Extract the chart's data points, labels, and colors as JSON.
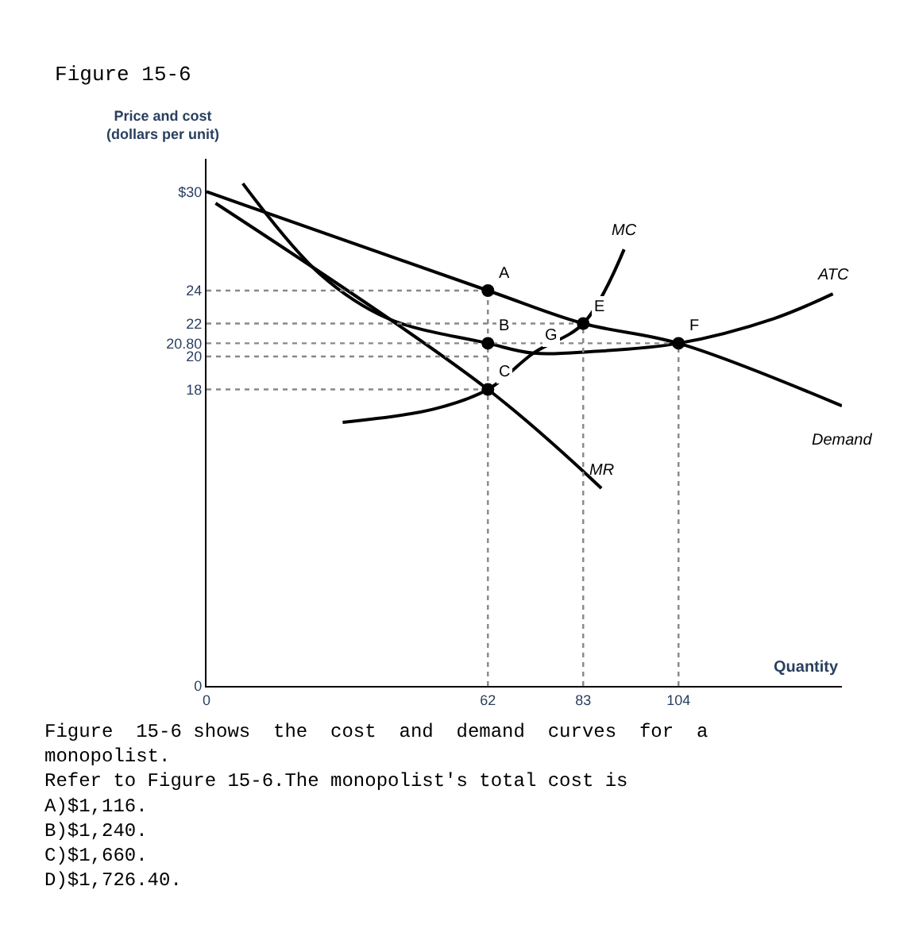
{
  "chart_data": {
    "type": "line",
    "title": "Figure 15-6",
    "ylabel": "Price and cost\n(dollars per unit)",
    "xlabel": "Quantity",
    "xlim": [
      0,
      140
    ],
    "ylim": [
      0,
      32
    ],
    "xticks": [
      0,
      62,
      83,
      104
    ],
    "yticks": [
      0,
      18,
      20,
      {
        "value": 20.8,
        "label": "20.80"
      },
      22,
      24,
      {
        "value": 30,
        "label": "$30"
      }
    ],
    "legend": false,
    "line_style": "solid",
    "marker": "none",
    "series": [
      {
        "name": "Demand",
        "color": "#000000",
        "x": [
          0,
          62,
          83,
          104,
          140
        ],
        "values": [
          30,
          24,
          22,
          20.8,
          17
        ]
      },
      {
        "name": "MR",
        "color": "#000000",
        "x": [
          2,
          62,
          87
        ],
        "values": [
          29.3,
          18,
          12
        ]
      },
      {
        "name": "ATC",
        "color": "#000000",
        "x": [
          8,
          25,
          40,
          62,
          72,
          85,
          104,
          125,
          138
        ],
        "values": [
          30.5,
          25,
          22.3,
          20.8,
          20.2,
          20.3,
          20.8,
          22.3,
          23.8
        ]
      },
      {
        "name": "MC",
        "color": "#000000",
        "x": [
          30,
          50,
          62,
          72,
          83,
          92
        ],
        "values": [
          16,
          16.8,
          18,
          20.2,
          22,
          26.5
        ]
      },
      {
        "color": "#888888",
        "line_style": "dotted",
        "x": [
          0,
          62
        ],
        "values": [
          24,
          24
        ]
      },
      {
        "color": "#888888",
        "line_style": "dotted",
        "x": [
          0,
          83
        ],
        "values": [
          22,
          22
        ]
      },
      {
        "color": "#888888",
        "line_style": "dotted",
        "x": [
          0,
          104
        ],
        "values": [
          20.8,
          20.8
        ]
      },
      {
        "color": "#888888",
        "line_style": "dotted",
        "x": [
          0,
          62
        ],
        "values": [
          20,
          20
        ]
      },
      {
        "color": "#888888",
        "line_style": "dotted",
        "x": [
          0,
          62
        ],
        "values": [
          18,
          18
        ]
      },
      {
        "color": "#888888",
        "line_style": "dotted",
        "x": [
          62,
          62
        ],
        "values": [
          0,
          24
        ]
      },
      {
        "color": "#888888",
        "line_style": "dotted",
        "x": [
          83,
          83
        ],
        "values": [
          0,
          22
        ]
      },
      {
        "color": "#888888",
        "line_style": "dotted",
        "x": [
          104,
          104
        ],
        "values": [
          0,
          20.8
        ]
      },
      {
        "type": "scatter",
        "marker": "circle",
        "color": "#000000",
        "x": [
          62,
          62,
          62,
          83,
          104
        ],
        "values": [
          24,
          20.8,
          18,
          22,
          20.8
        ]
      }
    ],
    "annotations": [
      {
        "text": "A",
        "x": 62,
        "y": 24
      },
      {
        "text": "B",
        "x": 62,
        "y": 20.8
      },
      {
        "text": "C",
        "x": 62,
        "y": 18
      },
      {
        "text": "E",
        "x": 83,
        "y": 22
      },
      {
        "text": "F",
        "x": 104,
        "y": 20.8
      },
      {
        "text": "G",
        "x": 72,
        "y": 20.2
      },
      "Figure  15-6 shows  the  cost  and  demand  curves  for  a\nmonopolist.\nRefer to Figure 15-6.The monopolist's total cost is\nA)$1,116.\nB)$1,240.\nC)$1,660.\nD)$1,726.40."
    ]
  }
}
